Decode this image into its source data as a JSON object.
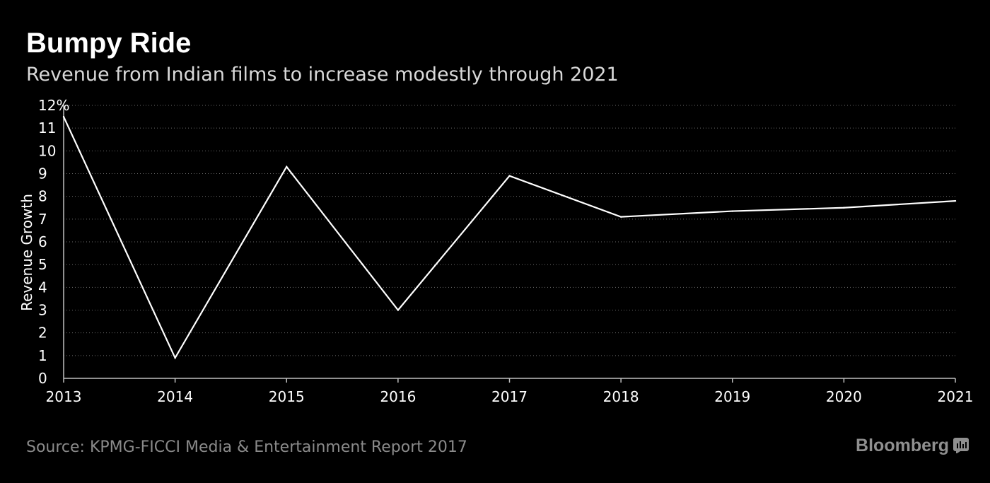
{
  "header": {
    "title": "Bumpy Ride",
    "subtitle": "Revenue from Indian films to increase modestly through 2021"
  },
  "chart_data": {
    "type": "line",
    "title": "Bumpy Ride",
    "subtitle": "Revenue from Indian films to increase modestly through 2021",
    "xlabel": "",
    "ylabel": "Revenue Growth",
    "x": [
      "2013",
      "2014",
      "2015",
      "2016",
      "2017",
      "2018",
      "2019",
      "2020",
      "2021"
    ],
    "series": [
      {
        "name": "Revenue Growth",
        "values": [
          11.5,
          0.9,
          9.3,
          3.0,
          8.9,
          7.1,
          7.35,
          7.5,
          7.8
        ]
      }
    ],
    "ylim": [
      0,
      12
    ],
    "yticks": [
      "0",
      "1",
      "2",
      "3",
      "4",
      "5",
      "6",
      "7",
      "8",
      "9",
      "10",
      "11",
      "12%"
    ],
    "grid": true,
    "line_color": "#ffffff",
    "grid_color": "#6a6a6a"
  },
  "footer": {
    "source": "Source: KPMG-FICCI Media & Entertainment Report 2017",
    "brand": "Bloomberg",
    "brand_icon": "bloomberg-chart-icon"
  }
}
